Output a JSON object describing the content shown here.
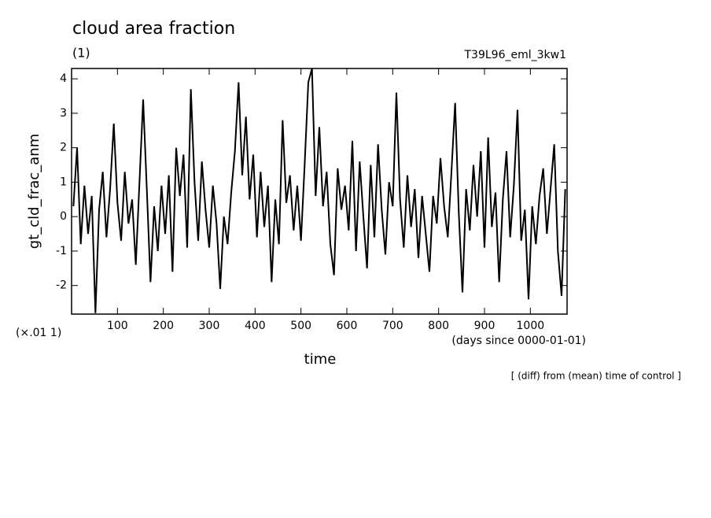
{
  "chart_data": {
    "type": "line",
    "title": "cloud area fraction",
    "subtitle": "(1)",
    "run_label": "T39L96_eml_3kw1",
    "ylabel": "gt_cld_frac_anm",
    "yunit": "(×.01 1)",
    "xunit": "(days since 0000-01-01)",
    "xlabel": "time",
    "note": "[ (diff) from (mean) time of control ]",
    "color": "#000000",
    "xlim": [
      0,
      1080
    ],
    "ylim": [
      -2.83,
      4.3
    ],
    "xticks": [
      100,
      200,
      300,
      400,
      500,
      600,
      700,
      800,
      900,
      1000
    ],
    "yticks": [
      -2,
      -1,
      0,
      1,
      2,
      3,
      4
    ],
    "x": [
      4,
      12,
      20,
      28,
      36,
      44,
      52,
      60,
      68,
      76,
      84,
      92,
      100,
      108,
      116,
      124,
      132,
      140,
      148,
      156,
      164,
      172,
      180,
      188,
      196,
      204,
      212,
      220,
      228,
      236,
      244,
      252,
      260,
      268,
      276,
      284,
      292,
      300,
      308,
      316,
      324,
      332,
      340,
      348,
      356,
      364,
      372,
      380,
      388,
      396,
      404,
      412,
      420,
      428,
      436,
      444,
      452,
      460,
      468,
      476,
      484,
      492,
      500,
      508,
      516,
      524,
      532,
      540,
      548,
      556,
      564,
      572,
      580,
      588,
      596,
      604,
      612,
      620,
      628,
      636,
      644,
      652,
      660,
      668,
      676,
      684,
      692,
      700,
      708,
      716,
      724,
      732,
      740,
      748,
      756,
      764,
      772,
      780,
      788,
      796,
      804,
      812,
      820,
      828,
      836,
      844,
      852,
      860,
      868,
      876,
      884,
      892,
      900,
      908,
      916,
      924,
      932,
      940,
      948,
      956,
      964,
      972,
      980,
      988,
      996,
      1004,
      1012,
      1020,
      1028,
      1036,
      1044,
      1052,
      1060,
      1068,
      1076
    ],
    "values": [
      0.3,
      2.0,
      -0.8,
      0.9,
      -0.5,
      0.6,
      -2.8,
      0.2,
      1.3,
      -0.6,
      0.8,
      2.7,
      0.4,
      -0.7,
      1.3,
      -0.2,
      0.5,
      -1.4,
      1.0,
      3.4,
      0.8,
      -1.9,
      0.3,
      -1.0,
      0.9,
      -0.5,
      1.2,
      -1.6,
      2.0,
      0.6,
      1.8,
      -0.9,
      3.7,
      1.0,
      -0.7,
      1.6,
      0.2,
      -0.9,
      0.9,
      -0.2,
      -2.1,
      0.0,
      -0.8,
      0.7,
      1.9,
      3.9,
      1.2,
      2.9,
      0.5,
      1.8,
      -0.6,
      1.3,
      -0.3,
      0.9,
      -1.9,
      0.5,
      -0.8,
      2.8,
      0.4,
      1.2,
      -0.4,
      0.9,
      -0.7,
      1.5,
      3.9,
      4.3,
      0.6,
      2.6,
      0.3,
      1.3,
      -0.8,
      -1.7,
      1.4,
      0.2,
      0.9,
      -0.4,
      2.2,
      -1.0,
      1.6,
      0.0,
      -1.5,
      1.5,
      -0.6,
      2.1,
      0.2,
      -1.1,
      1.0,
      0.3,
      3.6,
      0.5,
      -0.9,
      1.2,
      -0.3,
      0.8,
      -1.2,
      0.6,
      -0.5,
      -1.6,
      0.6,
      -0.2,
      1.7,
      0.3,
      -0.6,
      1.3,
      3.3,
      0.1,
      -2.2,
      0.8,
      -0.4,
      1.5,
      0.0,
      1.9,
      -0.9,
      2.3,
      -0.3,
      0.7,
      -1.9,
      0.5,
      1.9,
      -0.6,
      0.9,
      3.1,
      -0.7,
      0.2,
      -2.4,
      0.3,
      -0.8,
      0.6,
      1.4,
      -0.5,
      0.8,
      2.1,
      -1.0,
      -2.3,
      0.8
    ]
  }
}
